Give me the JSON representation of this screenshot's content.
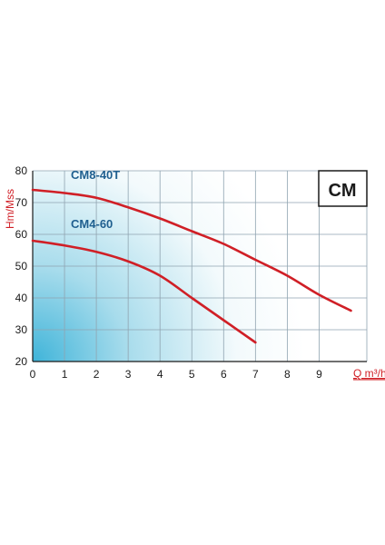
{
  "chart_data": {
    "type": "line",
    "title": "CM",
    "xlabel": "Q m³/h",
    "ylabel": "Hm/Mss",
    "xlim": [
      0,
      10.5
    ],
    "ylim": [
      20,
      80
    ],
    "x_ticks": [
      "0",
      "1",
      "2",
      "3",
      "4",
      "5",
      "6",
      "7",
      "8",
      "9"
    ],
    "y_ticks": [
      "20",
      "30",
      "40",
      "50",
      "60",
      "70",
      "80"
    ],
    "grid": true,
    "series": [
      {
        "name": "CM8-40T",
        "color": "#d01f26",
        "points": [
          [
            0,
            74
          ],
          [
            1,
            73
          ],
          [
            2,
            71.5
          ],
          [
            3,
            68.5
          ],
          [
            4,
            65
          ],
          [
            5,
            61
          ],
          [
            6,
            57
          ],
          [
            7,
            52
          ],
          [
            8,
            47
          ],
          [
            9,
            41
          ],
          [
            10,
            36
          ]
        ]
      },
      {
        "name": "CM4-60",
        "color": "#d01f26",
        "points": [
          [
            0,
            58
          ],
          [
            1,
            56.5
          ],
          [
            2,
            54.5
          ],
          [
            3,
            51.5
          ],
          [
            4,
            47
          ],
          [
            5,
            40
          ],
          [
            6,
            33
          ],
          [
            7,
            26
          ]
        ]
      }
    ],
    "series_label_color": "#1f5f8f",
    "axis_label_color": "#d01f26",
    "grid_color": "#8fa3b0"
  }
}
